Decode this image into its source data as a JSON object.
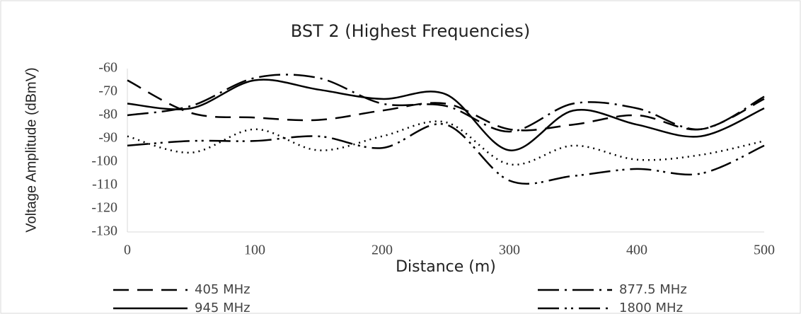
{
  "chart_data": {
    "type": "line",
    "title": "BST 2 (Highest Frequencies)",
    "xlabel": "Distance (m)",
    "ylabel": "Voltage Amplitude (dBmV)",
    "x": [
      0,
      50,
      100,
      150,
      200,
      250,
      300,
      350,
      400,
      450,
      500
    ],
    "xlim": [
      0,
      500
    ],
    "xticks": [
      0,
      100,
      200,
      300,
      400,
      500
    ],
    "ylim": [
      -130,
      -60
    ],
    "yticks": [
      -130,
      -120,
      -110,
      -100,
      -90,
      -80,
      -70,
      -60
    ],
    "grid": false,
    "series": [
      {
        "name": "405 MHz",
        "color": "#000000",
        "dash": "22,12",
        "values": [
          -65,
          -79,
          -81,
          -82,
          -78,
          -75,
          -86,
          -84,
          -80,
          -86,
          -73
        ]
      },
      {
        "name": "877.5 MHz",
        "color": "#000000",
        "dash": "30,8,3,8",
        "values": [
          -80,
          -76,
          -64,
          -64,
          -75,
          -76,
          -87,
          -75,
          -77,
          -86,
          -72
        ]
      },
      {
        "name": "945 MHz",
        "color": "#000000",
        "dash": "none",
        "values": [
          -75,
          -77,
          -65,
          -69,
          -73,
          -71,
          -95,
          -78,
          -84,
          -89,
          -77
        ]
      },
      {
        "name": "1800 MHz",
        "color": "#000000",
        "dash": "30,8,3,6,3,8",
        "values": [
          -93,
          -91,
          -91,
          -89,
          -94,
          -84,
          -108,
          -106,
          -103,
          -105,
          -93
        ]
      },
      {
        "color": "#000000",
        "dash": "2,6",
        "values": [
          -89,
          -96,
          -86,
          -95,
          -89,
          -83,
          -101,
          -93,
          -99,
          -97,
          -91
        ]
      }
    ]
  }
}
